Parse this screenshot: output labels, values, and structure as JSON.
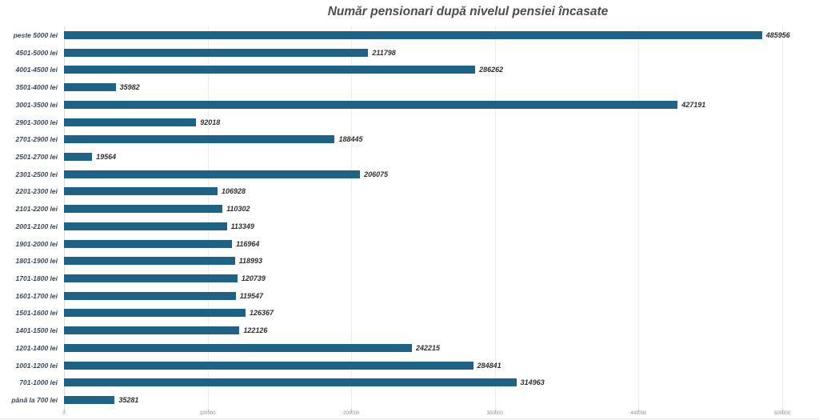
{
  "title": "Număr pensionari după nivelul pensiei încasate",
  "colors": {
    "bar": "#1E6386",
    "title_text": "#4d4d4d",
    "category_label_text": "#37485a",
    "value_label_text": "#2e2e2e",
    "gridline": "#ececec",
    "axis_line": "#d9d9d9",
    "tick_label_text": "#8c8c8c",
    "background": "#ffffff"
  },
  "chart_data": {
    "type": "bar",
    "orientation": "horizontal",
    "title": "Număr pensionari după nivelul pensiei încasate",
    "categories": [
      "peste 5000 lei",
      "4501-5000 lei",
      "4001-4500 lei",
      "3501-4000 lei",
      "3001-3500 lei",
      "2901-3000 lei",
      "2701-2900 lei",
      "2501-2700 lei",
      "2301-2500 lei",
      "2201-2300 lei",
      "2101-2200 lei",
      "2001-2100 lei",
      "1901-2000 lei",
      "1801-1900 lei",
      "1701-1800 lei",
      "1601-1700 lei",
      "1501-1600 lei",
      "1401-1500 lei",
      "1201-1400 lei",
      "1001-1200 lei",
      "701-1000 lei",
      "până la 700 lei"
    ],
    "values": [
      485956,
      211798,
      286262,
      35982,
      427191,
      92018,
      188445,
      19564,
      206075,
      106928,
      110302,
      113349,
      116964,
      118993,
      120739,
      119547,
      126367,
      122126,
      242215,
      284841,
      314963,
      35281
    ],
    "value_labels_shown": true,
    "xlabel": "",
    "ylabel": "",
    "xlim": [
      0,
      500000
    ],
    "x_ticks": [
      0,
      100000,
      200000,
      300000,
      400000,
      500000
    ],
    "x_tick_labels": [
      "0",
      "100000",
      "200000",
      "300000",
      "400000",
      "500000"
    ],
    "grid": true,
    "legend": false
  }
}
